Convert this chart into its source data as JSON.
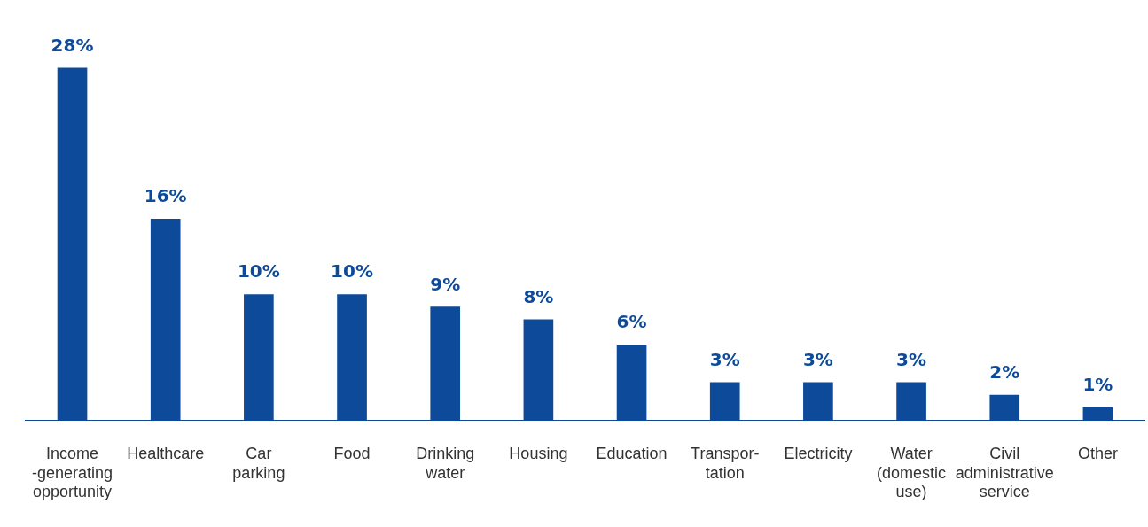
{
  "chart_data": {
    "type": "bar",
    "categories": [
      "Income\n-generating\nopportunity",
      "Healthcare",
      "Car\nparking",
      "Food",
      "Drinking\nwater",
      "Housing",
      "Education",
      "Transpor-\ntation",
      "Electricity",
      "Water\n(domestic\nuse)",
      "Civil\nadministrative\nservice",
      "Other"
    ],
    "values": [
      28,
      16,
      10,
      10,
      9,
      8,
      6,
      3,
      3,
      3,
      2,
      1
    ],
    "value_labels": [
      "28%",
      "16%",
      "10%",
      "10%",
      "9%",
      "8%",
      "6%",
      "3%",
      "3%",
      "3%",
      "2%",
      "1%"
    ],
    "color": "#0d4a9a",
    "grid": false,
    "legend": false
  }
}
